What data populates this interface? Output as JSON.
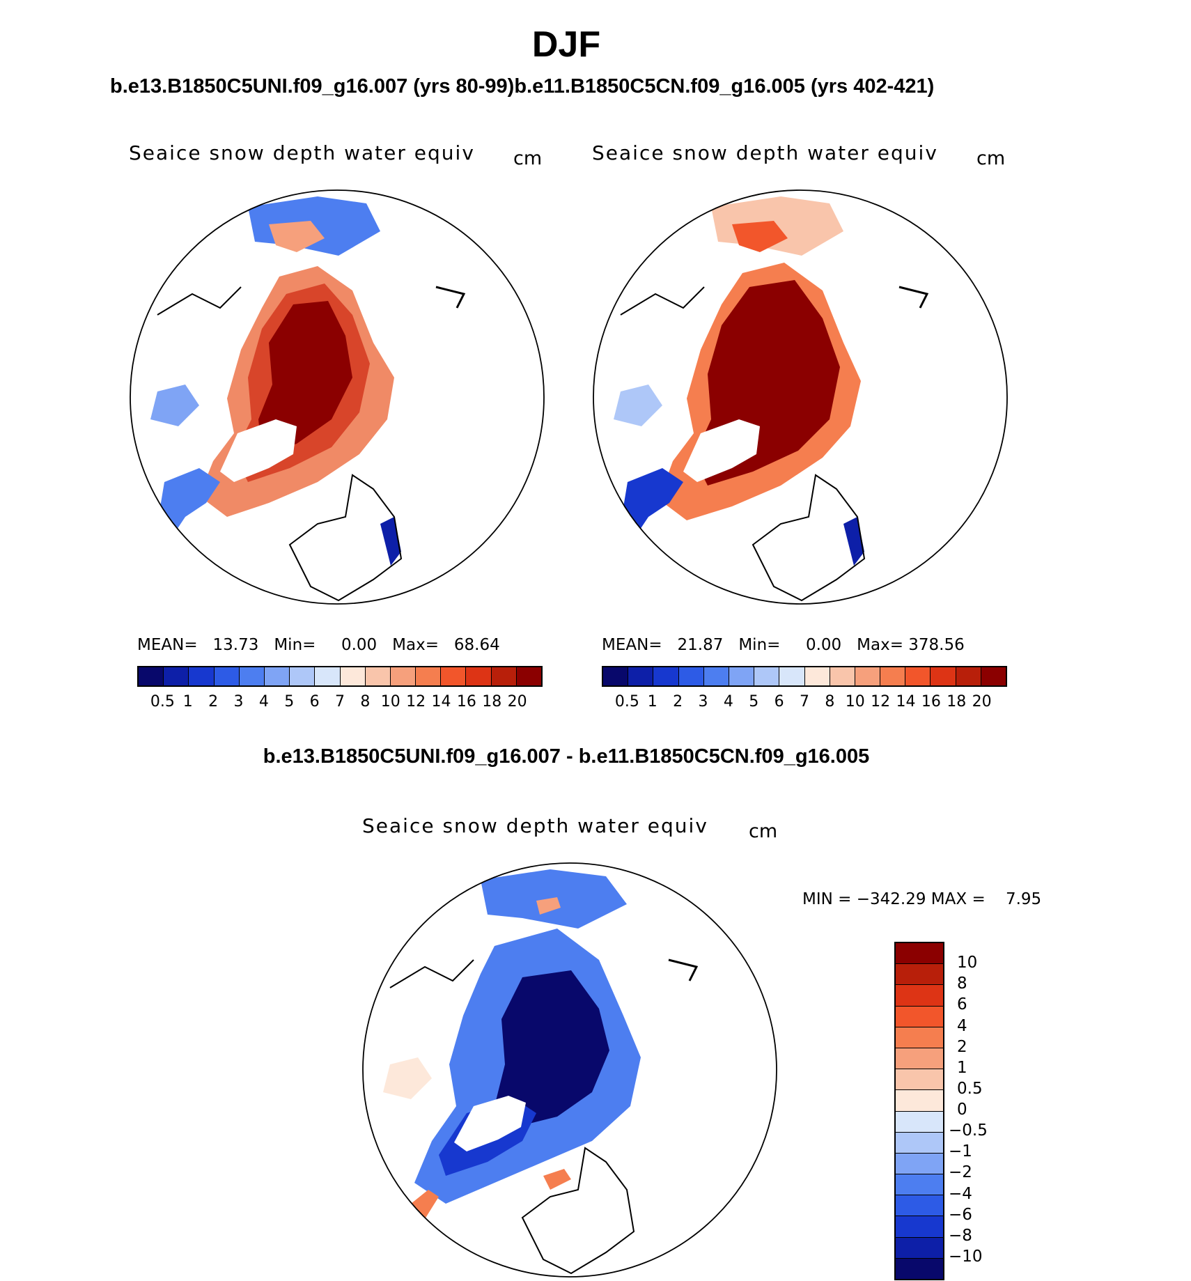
{
  "figure": {
    "season": "DJF",
    "run_left": "b.e13.B1850C5UNI.f09_g16.007 (yrs 80-99)",
    "run_right": "b.e11.B1850C5CN.f09_g16.005 (yrs 402-421)",
    "diff_title": "b.e13.B1850C5UNI.f09_g16.007 - b.e11.B1850C5CN.f09_g16.005"
  },
  "panels": {
    "left": {
      "variable": "Seaice snow depth water equiv",
      "units": "cm",
      "mean_label": "MEAN=",
      "mean": "13.73",
      "min_label": "Min=",
      "min": "0.00",
      "max_label": "Max=",
      "max": "68.64"
    },
    "right": {
      "variable": "Seaice snow depth water equiv",
      "units": "cm",
      "mean_label": "MEAN=",
      "mean": "21.87",
      "min_label": "Min=",
      "min": "0.00",
      "max_label": "Max=",
      "max": "378.56"
    },
    "diff": {
      "variable": "Seaice snow depth water equiv",
      "units": "cm",
      "min_label": "MIN =",
      "min": "−342.29",
      "max_label": "MAX =",
      "max": "7.95"
    }
  },
  "colorbars": {
    "abs_colors": [
      "#08086b",
      "#0d1fa8",
      "#1738cf",
      "#2d5be6",
      "#4d7ef0",
      "#7fa4f5",
      "#aec7f8",
      "#d8e6fa",
      "#fde8da",
      "#f9c5ab",
      "#f6a07c",
      "#f57e4f",
      "#f2562b",
      "#dd3415",
      "#b81f0a",
      "#8b0000"
    ],
    "abs_ticks": [
      "0.5",
      "1",
      "2",
      "3",
      "4",
      "5",
      "6",
      "7",
      "8",
      "10",
      "12",
      "14",
      "16",
      "18",
      "20"
    ],
    "diff_colors": [
      "#8b0000",
      "#b81f0a",
      "#dd3415",
      "#f2562b",
      "#f57e4f",
      "#f6a07c",
      "#f9c5ab",
      "#fde8da",
      "#d8e6fa",
      "#aec7f8",
      "#7fa4f5",
      "#4d7ef0",
      "#2d5be6",
      "#1738cf",
      "#0d1fa8",
      "#08086b"
    ],
    "diff_ticks": [
      "10",
      "8",
      "6",
      "4",
      "2",
      "1",
      "0.5",
      "0",
      "−0.5",
      "−1",
      "−2",
      "−4",
      "−6",
      "−8",
      "−10"
    ]
  },
  "colors": {
    "ice_thick": "#8b0000",
    "ice_mid": "#d8452a",
    "ice_thin": "#f08a66",
    "ocean_cold": "#2d5be6",
    "diff_deep": "#08086b",
    "diff_mid": "#1738cf",
    "diff_light": "#4d7ef0"
  }
}
